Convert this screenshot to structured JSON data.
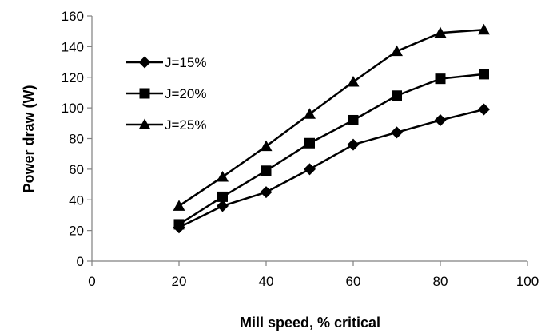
{
  "chart_data": {
    "type": "line",
    "xlabel": "Mill speed, % critical",
    "ylabel": "Power draw (W)",
    "xlim": [
      0,
      100
    ],
    "ylim": [
      0,
      160
    ],
    "xticks": [
      0,
      20,
      40,
      60,
      80,
      100
    ],
    "yticks": [
      0,
      20,
      40,
      60,
      80,
      100,
      120,
      140,
      160
    ],
    "grid": false,
    "legend_position": "left",
    "x": [
      20,
      30,
      40,
      50,
      60,
      70,
      80,
      90
    ],
    "series": [
      {
        "name": "J=15%",
        "marker": "diamond",
        "color": "#000000",
        "values": [
          22,
          36,
          45,
          60,
          76,
          84,
          92,
          99
        ]
      },
      {
        "name": "J=20%",
        "marker": "square",
        "color": "#000000",
        "values": [
          24,
          42,
          59,
          77,
          92,
          108,
          119,
          122
        ]
      },
      {
        "name": "J=25%",
        "marker": "triangle",
        "color": "#000000",
        "values": [
          36,
          55,
          75,
          96,
          117,
          137,
          149,
          151
        ]
      }
    ]
  }
}
